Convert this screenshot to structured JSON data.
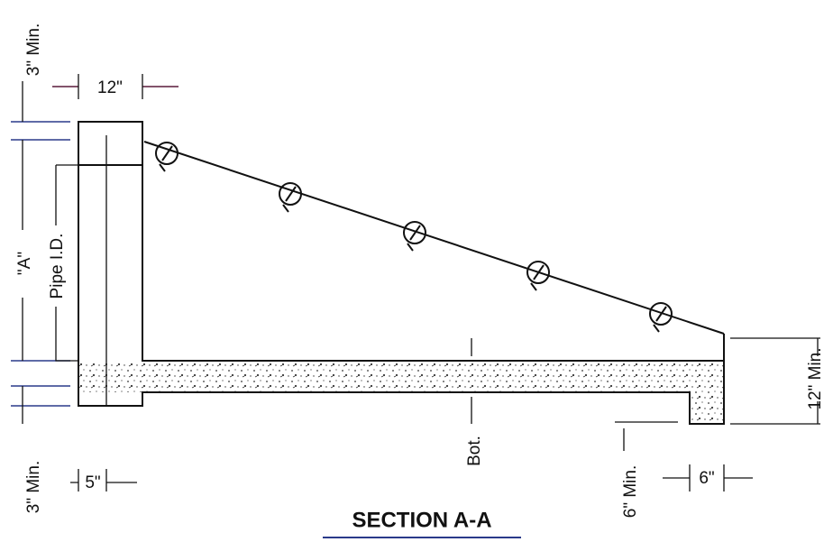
{
  "dimensions": {
    "top_cover": "3\" Min.",
    "wall_thickness": "12\"",
    "height": "\"A\"",
    "pipe": "Pipe I.D.",
    "bottom_cover": "3\" Min.",
    "pipe_wall": "5\"",
    "slab_bottom": "Bot.",
    "toe_depth": "6\" Min.",
    "toe_width": "6\"",
    "slab_thickness": "12\" Min."
  },
  "title": "SECTION A-A"
}
